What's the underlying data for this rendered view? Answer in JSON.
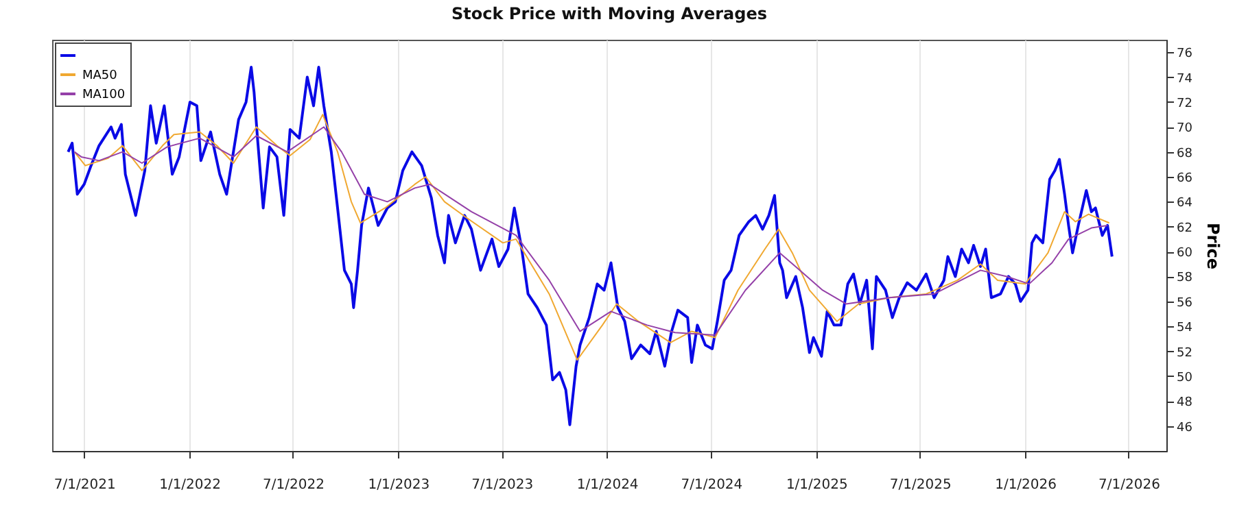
{
  "chart_data": {
    "type": "line",
    "title": "Stock Price with Moving Averages",
    "ylabel": "Price",
    "xlim": [
      "2021-05-06",
      "2026-09-05"
    ],
    "ylim": [
      44,
      77
    ],
    "xticks": [
      {
        "value": "2021-07-01",
        "label": "7/1/2021"
      },
      {
        "value": "2022-01-01",
        "label": "1/1/2022"
      },
      {
        "value": "2022-07-01",
        "label": "7/1/2022"
      },
      {
        "value": "2023-01-01",
        "label": "1/1/2023"
      },
      {
        "value": "2023-07-01",
        "label": "7/1/2023"
      },
      {
        "value": "2024-01-01",
        "label": "1/1/2024"
      },
      {
        "value": "2024-07-01",
        "label": "7/1/2024"
      },
      {
        "value": "2025-01-01",
        "label": "1/1/2025"
      },
      {
        "value": "2025-07-01",
        "label": "7/1/2025"
      },
      {
        "value": "2026-01-01",
        "label": "1/1/2026"
      },
      {
        "value": "2026-07-01",
        "label": "7/1/2026"
      }
    ],
    "yticks": [
      46,
      48,
      50,
      52,
      54,
      56,
      58,
      60,
      62,
      64,
      66,
      68,
      70,
      72,
      74,
      76
    ],
    "grid": "x",
    "legend": "top left",
    "line_style": "solid",
    "series": [
      {
        "color": "#0a0ae6",
        "x": [
          "2021-06-03",
          "2021-06-10",
          "2021-06-19",
          "2021-07-01",
          "2021-07-13",
          "2021-07-27",
          "2021-08-17",
          "2021-08-24",
          "2021-09-04",
          "2021-09-11",
          "2021-09-29",
          "2021-10-15",
          "2021-10-25",
          "2021-11-04",
          "2021-11-18",
          "2021-12-02",
          "2021-12-14",
          "2022-01-02",
          "2022-01-14",
          "2022-01-21",
          "2022-02-07",
          "2022-02-23",
          "2022-03-07",
          "2022-03-28",
          "2022-04-10",
          "2022-04-19",
          "2022-04-24",
          "2022-04-30",
          "2022-05-10",
          "2022-05-21",
          "2022-06-03",
          "2022-06-15",
          "2022-06-26",
          "2022-07-12",
          "2022-07-26",
          "2022-08-06",
          "2022-08-15",
          "2022-08-24",
          "2022-09-06",
          "2022-09-17",
          "2022-09-29",
          "2022-10-11",
          "2022-10-15",
          "2022-10-22",
          "2022-10-29",
          "2022-11-10",
          "2022-11-27",
          "2022-12-13",
          "2022-12-27",
          "2023-01-09",
          "2023-01-25",
          "2023-02-11",
          "2023-02-28",
          "2023-03-11",
          "2023-03-23",
          "2023-03-30",
          "2023-04-11",
          "2023-04-27",
          "2023-05-09",
          "2023-05-25",
          "2023-06-14",
          "2023-06-26",
          "2023-07-12",
          "2023-07-23",
          "2023-08-05",
          "2023-08-16",
          "2023-09-01",
          "2023-09-17",
          "2023-09-28",
          "2023-10-10",
          "2023-10-21",
          "2023-10-28",
          "2023-11-08",
          "2023-11-15",
          "2023-12-01",
          "2023-12-15",
          "2023-12-27",
          "2024-01-08",
          "2024-01-20",
          "2024-02-01",
          "2024-02-13",
          "2024-02-29",
          "2024-03-16",
          "2024-03-27",
          "2024-04-11",
          "2024-04-23",
          "2024-05-04",
          "2024-05-21",
          "2024-05-28",
          "2024-06-07",
          "2024-06-21",
          "2024-07-03",
          "2024-07-12",
          "2024-07-24",
          "2024-08-05",
          "2024-08-19",
          "2024-09-05",
          "2024-09-17",
          "2024-09-29",
          "2024-10-10",
          "2024-10-20",
          "2024-10-29",
          "2024-11-03",
          "2024-11-10",
          "2024-11-26",
          "2024-12-08",
          "2024-12-20",
          "2024-12-27",
          "2025-01-10",
          "2025-01-20",
          "2025-02-01",
          "2025-02-13",
          "2025-02-25",
          "2025-03-07",
          "2025-03-18",
          "2025-03-30",
          "2025-04-09",
          "2025-04-16",
          "2025-05-02",
          "2025-05-14",
          "2025-05-26",
          "2025-06-09",
          "2025-06-25",
          "2025-07-12",
          "2025-07-26",
          "2025-08-12",
          "2025-08-19",
          "2025-09-01",
          "2025-09-12",
          "2025-09-24",
          "2025-10-03",
          "2025-10-15",
          "2025-10-24",
          "2025-11-03",
          "2025-11-19",
          "2025-12-03",
          "2025-12-15",
          "2025-12-24",
          "2026-01-06",
          "2026-01-13",
          "2026-01-20",
          "2026-02-01",
          "2026-02-13",
          "2026-02-22",
          "2026-03-02",
          "2026-03-11",
          "2026-03-18",
          "2026-03-25",
          "2026-04-04",
          "2026-04-18",
          "2026-04-27",
          "2026-05-04",
          "2026-05-16",
          "2026-05-25",
          "2026-06-02"
        ],
        "values": [
          68.0,
          68.7,
          64.6,
          65.4,
          66.9,
          68.5,
          70.0,
          69.1,
          70.2,
          66.2,
          62.9,
          66.5,
          71.7,
          68.7,
          71.7,
          66.2,
          67.6,
          72.0,
          71.7,
          67.3,
          69.6,
          66.2,
          64.6,
          70.6,
          72.0,
          74.8,
          72.8,
          69.1,
          63.5,
          68.4,
          67.6,
          62.9,
          69.8,
          69.1,
          74.0,
          71.7,
          74.8,
          71.7,
          68.0,
          63.5,
          58.5,
          57.4,
          55.5,
          58.5,
          62.1,
          65.1,
          62.1,
          63.5,
          64.0,
          66.5,
          68.0,
          66.9,
          64.3,
          61.3,
          59.1,
          62.9,
          60.7,
          62.9,
          61.8,
          58.5,
          61.0,
          58.8,
          60.2,
          63.5,
          60.2,
          56.6,
          55.5,
          54.1,
          49.7,
          50.3,
          48.9,
          46.1,
          50.8,
          52.5,
          54.7,
          57.4,
          56.9,
          59.1,
          55.5,
          54.4,
          51.4,
          52.5,
          51.8,
          53.6,
          50.8,
          53.6,
          55.3,
          54.7,
          51.1,
          54.1,
          52.5,
          52.2,
          54.4,
          57.7,
          58.5,
          61.3,
          62.4,
          62.9,
          61.8,
          62.9,
          64.5,
          59.1,
          58.5,
          56.3,
          58.0,
          55.5,
          51.9,
          53.1,
          51.6,
          55.2,
          54.1,
          54.1,
          57.4,
          58.2,
          55.8,
          57.7,
          52.2,
          58.0,
          56.9,
          54.7,
          56.3,
          57.5,
          56.9,
          58.2,
          56.3,
          57.7,
          59.6,
          58.0,
          60.2,
          59.1,
          60.5,
          58.8,
          60.2,
          56.3,
          56.6,
          58.0,
          57.4,
          56.0,
          56.9,
          60.7,
          61.3,
          60.7,
          65.8,
          66.5,
          67.4,
          64.6,
          62.1,
          59.9,
          62.1,
          64.9,
          63.2,
          63.5,
          61.3,
          62.1,
          59.6
        ]
      },
      {
        "name": "MA50",
        "color": "#f0a830",
        "x": [
          "2021-06-14",
          "2021-07-03",
          "2021-08-12",
          "2021-09-06",
          "2021-10-10",
          "2021-11-15",
          "2021-12-05",
          "2022-01-19",
          "2022-02-18",
          "2022-03-19",
          "2022-04-28",
          "2022-06-03",
          "2022-06-26",
          "2022-07-31",
          "2022-08-22",
          "2022-09-17",
          "2022-10-11",
          "2022-10-27",
          "2022-12-09",
          "2023-01-30",
          "2023-02-18",
          "2023-03-23",
          "2023-05-01",
          "2023-07-03",
          "2023-07-26",
          "2023-09-22",
          "2023-11-10",
          "2023-12-24",
          "2024-01-18",
          "2024-02-25",
          "2024-04-21",
          "2024-05-28",
          "2024-07-08",
          "2024-08-17",
          "2024-10-03",
          "2024-10-27",
          "2024-11-20",
          "2024-12-20",
          "2025-02-06",
          "2025-03-16",
          "2025-05-09",
          "2025-07-12",
          "2025-09-05",
          "2025-10-15",
          "2025-11-14",
          "2026-01-01",
          "2026-02-10",
          "2026-03-11",
          "2026-03-30",
          "2026-04-22",
          "2026-05-28"
        ],
        "values": [
          68.0,
          66.9,
          67.5,
          68.5,
          66.5,
          68.5,
          69.4,
          69.6,
          68.5,
          67.1,
          70.0,
          68.5,
          67.7,
          69.0,
          71.0,
          68.0,
          64.0,
          62.3,
          63.5,
          65.4,
          66.0,
          64.0,
          62.7,
          60.7,
          61.0,
          56.6,
          51.3,
          54.1,
          55.8,
          54.4,
          52.7,
          53.6,
          53.1,
          56.9,
          60.2,
          61.8,
          59.9,
          56.9,
          54.4,
          55.8,
          56.3,
          56.6,
          57.7,
          59.0,
          57.7,
          57.4,
          59.9,
          63.2,
          62.4,
          63.0,
          62.3
        ]
      },
      {
        "name": "MA100",
        "color": "#9440a8",
        "x": [
          "2021-06-14",
          "2021-06-26",
          "2021-07-27",
          "2021-09-06",
          "2021-10-10",
          "2021-11-23",
          "2022-01-19",
          "2022-03-19",
          "2022-04-28",
          "2022-06-21",
          "2022-08-24",
          "2022-09-24",
          "2022-11-03",
          "2022-12-13",
          "2023-01-30",
          "2023-02-25",
          "2023-05-09",
          "2023-07-26",
          "2023-09-22",
          "2023-11-15",
          "2024-01-08",
          "2024-03-11",
          "2024-04-29",
          "2024-07-08",
          "2024-08-30",
          "2024-10-29",
          "2024-12-03",
          "2025-01-12",
          "2025-02-22",
          "2025-05-09",
          "2025-07-26",
          "2025-10-15",
          "2025-11-30",
          "2026-01-08",
          "2026-02-17",
          "2026-03-18",
          "2026-04-27",
          "2026-05-25"
        ],
        "values": [
          68.0,
          67.6,
          67.3,
          68.0,
          67.1,
          68.4,
          69.1,
          67.6,
          69.3,
          68.0,
          70.0,
          68.0,
          64.6,
          64.0,
          65.1,
          65.4,
          63.2,
          61.3,
          57.7,
          53.6,
          55.2,
          54.1,
          53.5,
          53.3,
          56.9,
          59.9,
          58.5,
          56.9,
          55.8,
          56.3,
          56.6,
          58.5,
          58.0,
          57.4,
          59.1,
          61.0,
          61.9,
          62.1
        ]
      }
    ]
  }
}
